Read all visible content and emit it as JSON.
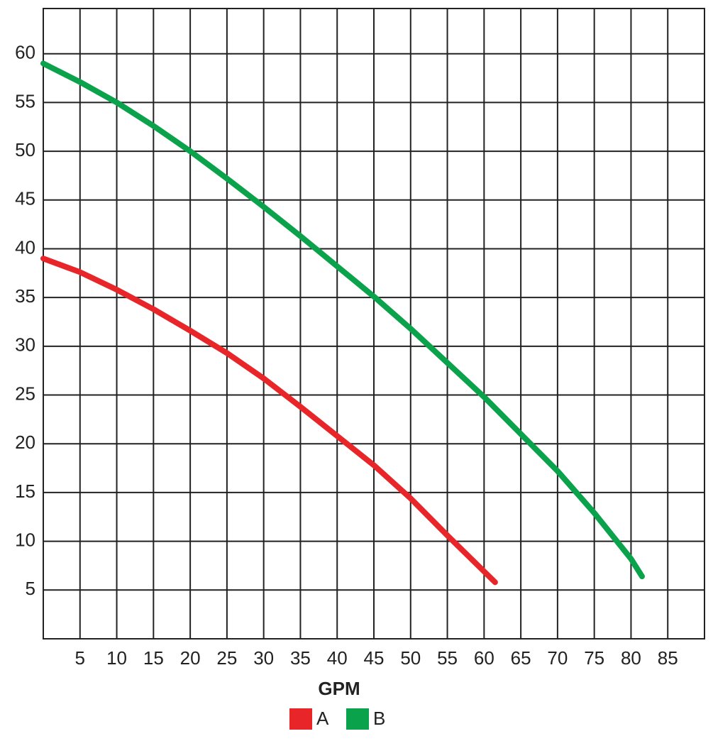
{
  "chart_data": {
    "type": "line",
    "x_label": "GPM",
    "xlim": [
      0,
      90
    ],
    "ylim": [
      0,
      65
    ],
    "xticks": [
      5,
      10,
      15,
      20,
      25,
      30,
      35,
      40,
      45,
      50,
      55,
      60,
      65,
      70,
      75,
      80,
      85
    ],
    "yticks": [
      5,
      10,
      15,
      20,
      25,
      30,
      35,
      40,
      45,
      50,
      55,
      60
    ],
    "grid": true,
    "legend": "bottom",
    "series": [
      {
        "name": "A",
        "color": "#e8262a",
        "x": [
          0,
          5,
          10,
          15,
          20,
          25,
          30,
          35,
          40,
          45,
          50,
          55,
          61.5
        ],
        "values": [
          39,
          37.6,
          35.8,
          33.8,
          31.6,
          29.3,
          26.7,
          23.8,
          20.8,
          17.8,
          14.4,
          10.6,
          5.8
        ]
      },
      {
        "name": "B",
        "color": "#0aa24b",
        "x": [
          0,
          5,
          10,
          15,
          20,
          25,
          30,
          35,
          40,
          45,
          50,
          55,
          60,
          65,
          70,
          75,
          80,
          81.5
        ],
        "values": [
          59,
          57.1,
          55,
          52.6,
          50,
          47.2,
          44.3,
          41.3,
          38.2,
          35.1,
          31.8,
          28.3,
          24.8,
          21.0,
          17.2,
          12.9,
          8.2,
          6.4
        ]
      }
    ]
  }
}
